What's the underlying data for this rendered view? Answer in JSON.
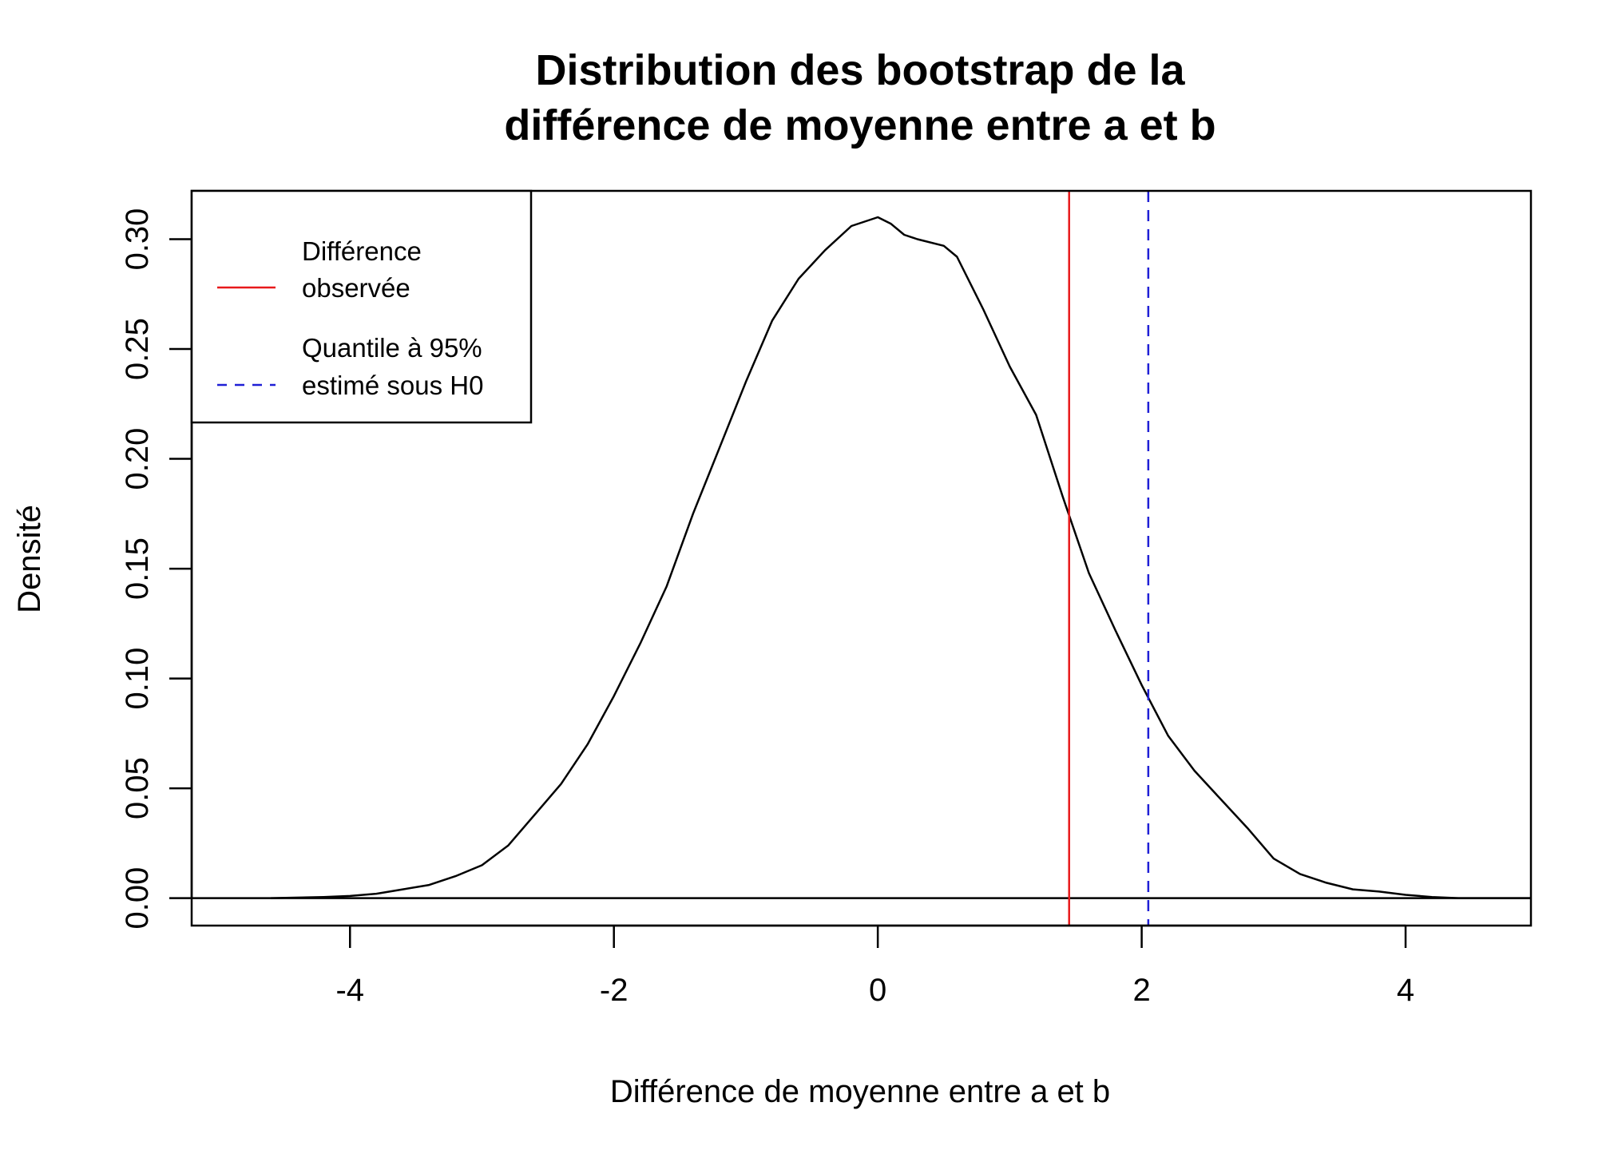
{
  "chart_data": {
    "type": "line",
    "title_lines": [
      "Distribution des bootstrap de la",
      "différence de moyenne entre a et b"
    ],
    "xlabel": "Différence de moyenne entre a et b",
    "ylabel": "Densité",
    "xlim": [
      -5.2,
      4.95
    ],
    "ylim": [
      -0.0125,
      0.322
    ],
    "x_ticks": [
      -4,
      -2,
      0,
      2,
      4
    ],
    "x_tick_labels": [
      "-4",
      "-2",
      "0",
      "2",
      "4"
    ],
    "y_ticks": [
      0,
      0.05,
      0.1,
      0.15,
      0.2,
      0.25,
      0.3
    ],
    "y_tick_labels": [
      "0.00",
      "0.05",
      "0.10",
      "0.15",
      "0.20",
      "0.25",
      "0.30"
    ],
    "grid": false,
    "legend_position": "top-left",
    "series": [
      {
        "kind": "density",
        "color": "#000000",
        "points": [
          [
            -4.6,
            0
          ],
          [
            -4.2,
            0.0005
          ],
          [
            -4.0,
            0.001
          ],
          [
            -3.8,
            0.002
          ],
          [
            -3.6,
            0.004
          ],
          [
            -3.4,
            0.006
          ],
          [
            -3.2,
            0.01
          ],
          [
            -3.0,
            0.015
          ],
          [
            -2.8,
            0.024
          ],
          [
            -2.6,
            0.038
          ],
          [
            -2.4,
            0.052
          ],
          [
            -2.2,
            0.07
          ],
          [
            -2.0,
            0.092
          ],
          [
            -1.8,
            0.116
          ],
          [
            -1.6,
            0.142
          ],
          [
            -1.4,
            0.175
          ],
          [
            -1.2,
            0.205
          ],
          [
            -1.0,
            0.235
          ],
          [
            -0.8,
            0.263
          ],
          [
            -0.6,
            0.282
          ],
          [
            -0.4,
            0.295
          ],
          [
            -0.2,
            0.306
          ],
          [
            0.0,
            0.31
          ],
          [
            0.1,
            0.307
          ],
          [
            0.2,
            0.302
          ],
          [
            0.3,
            0.3
          ],
          [
            0.5,
            0.297
          ],
          [
            0.6,
            0.292
          ],
          [
            0.8,
            0.268
          ],
          [
            1.0,
            0.242
          ],
          [
            1.2,
            0.22
          ],
          [
            1.4,
            0.183
          ],
          [
            1.6,
            0.148
          ],
          [
            1.8,
            0.122
          ],
          [
            2.0,
            0.097
          ],
          [
            2.2,
            0.074
          ],
          [
            2.4,
            0.058
          ],
          [
            2.6,
            0.045
          ],
          [
            2.8,
            0.032
          ],
          [
            3.0,
            0.018
          ],
          [
            3.2,
            0.011
          ],
          [
            3.4,
            0.007
          ],
          [
            3.6,
            0.004
          ],
          [
            3.8,
            0.003
          ],
          [
            4.0,
            0.0015
          ],
          [
            4.2,
            0.0005
          ],
          [
            4.4,
            0
          ],
          [
            4.95,
            0
          ]
        ]
      }
    ],
    "baseline": {
      "y": 0,
      "color": "#000000"
    },
    "reference_lines": [
      {
        "x": 1.45,
        "color": "#e8191b",
        "style": "solid"
      },
      {
        "x": 2.05,
        "color": "#1f1fd6",
        "style": "dashed"
      }
    ],
    "legend": [
      {
        "lines": [
          "Différence",
          "observée"
        ],
        "color": "#e8191b",
        "style": "solid"
      },
      {
        "lines": [
          "Quantile à 95%",
          "estimé sous H0"
        ],
        "color": "#1f1fd6",
        "style": "dashed"
      }
    ]
  }
}
